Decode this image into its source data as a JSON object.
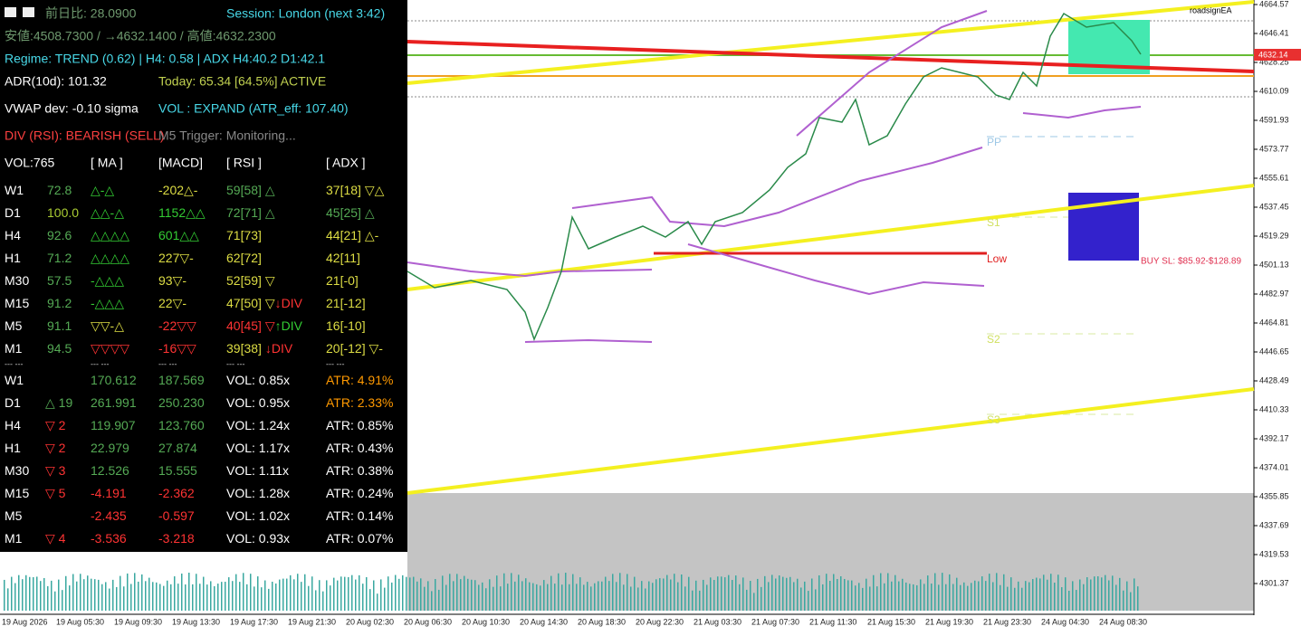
{
  "header": {
    "prev_day": "前日比: 28.0900",
    "session": "Session: London (next 3:42)",
    "range": "安値:4508.7300 / →4632.1400 / 高値:4632.2300",
    "regime": "Regime: TREND (0.62) | H4: 0.58 | ADX H4:40.2 D1:42.1",
    "adr": "ADR(10d): 101.32",
    "today": "Today: 65.34 [64.5%] ACTIVE",
    "vwap": "VWAP dev: -0.10 sigma",
    "vol": "VOL : EXPAND (ATR_eff: 107.40)",
    "div": "DIV (RSI): BEARISH (SELL)",
    "trigger": "M5 Trigger: Monitoring..."
  },
  "table1": {
    "columns": [
      "VOL:765",
      "[ MA ]",
      "[MACD]",
      "[ RSI ]",
      "[ ADX ]"
    ],
    "rows": [
      [
        [
          [
            "W1",
            "#ffffff"
          ]
        ],
        [
          [
            "72.8",
            "#55aa55"
          ]
        ],
        [
          [
            "△-△",
            "#33cc33"
          ]
        ],
        [
          [
            "-202△-",
            "#dddd44"
          ]
        ],
        [
          [
            "59[58] △",
            "#55aa55"
          ]
        ],
        [
          [
            "37[18] ▽△",
            "#dddd44"
          ]
        ]
      ],
      [
        [
          [
            "D1",
            "#ffffff"
          ]
        ],
        [
          [
            "100.0",
            "#aacc33"
          ]
        ],
        [
          [
            "△△-△",
            "#33cc33"
          ]
        ],
        [
          [
            "1152△△",
            "#33cc33"
          ]
        ],
        [
          [
            "72[71] △",
            "#55aa55"
          ]
        ],
        [
          [
            "45[25] △",
            "#55aa55"
          ]
        ]
      ],
      [
        [
          [
            "H4",
            "#ffffff"
          ]
        ],
        [
          [
            "92.6",
            "#55aa55"
          ]
        ],
        [
          [
            "△△△△",
            "#33cc33"
          ]
        ],
        [
          [
            "601△△",
            "#33cc33"
          ]
        ],
        [
          [
            "71[73]",
            "#dddd44"
          ]
        ],
        [
          [
            "44[21] △-",
            "#dddd44"
          ]
        ]
      ],
      [
        [
          [
            "H1",
            "#ffffff"
          ]
        ],
        [
          [
            "71.2",
            "#55aa55"
          ]
        ],
        [
          [
            "△△△△",
            "#33cc33"
          ]
        ],
        [
          [
            "227▽-",
            "#dddd44"
          ]
        ],
        [
          [
            "62[72]",
            "#dddd44"
          ]
        ],
        [
          [
            "42[11]",
            "#dddd44"
          ]
        ]
      ],
      [
        [
          [
            "M30",
            "#ffffff"
          ]
        ],
        [
          [
            "57.5",
            "#55aa55"
          ]
        ],
        [
          [
            "-△△△",
            "#33cc33"
          ]
        ],
        [
          [
            "93▽-",
            "#dddd44"
          ]
        ],
        [
          [
            "52[59] ▽",
            "#dddd44"
          ]
        ],
        [
          [
            "21[-0]",
            "#dddd44"
          ]
        ]
      ],
      [
        [
          [
            "M15",
            "#ffffff"
          ]
        ],
        [
          [
            "91.2",
            "#55aa55"
          ]
        ],
        [
          [
            "-△△△",
            "#33cc33"
          ]
        ],
        [
          [
            "22▽-",
            "#dddd44"
          ]
        ],
        [
          [
            "47[50] ▽",
            "#dddd44"
          ],
          [
            "↓DIV",
            "#ff3333"
          ]
        ],
        [
          [
            "21[-12]",
            "#dddd44"
          ]
        ]
      ],
      [
        [
          [
            "M5",
            "#ffffff"
          ]
        ],
        [
          [
            "91.1",
            "#55aa55"
          ]
        ],
        [
          [
            "▽▽-△",
            "#dddd44"
          ]
        ],
        [
          [
            "-22▽▽",
            "#ff3333"
          ]
        ],
        [
          [
            "40[45] ▽",
            "#ff3333"
          ],
          [
            "↑DIV",
            "#33cc33"
          ]
        ],
        [
          [
            "16[-10]",
            "#dddd44"
          ]
        ]
      ],
      [
        [
          [
            "M1",
            "#ffffff"
          ]
        ],
        [
          [
            "94.5",
            "#55aa55"
          ]
        ],
        [
          [
            "▽▽▽▽",
            "#ff3333"
          ]
        ],
        [
          [
            "-16▽▽",
            "#ff3333"
          ]
        ],
        [
          [
            "39[38]  ",
            "#dddd44"
          ],
          [
            "↓DIV",
            "#ff3333"
          ]
        ],
        [
          [
            "20[-12] ▽-",
            "#dddd44"
          ]
        ]
      ]
    ]
  },
  "separator": "--- ---",
  "table2": {
    "rows": [
      [
        [
          [
            "W1",
            "#ffffff"
          ]
        ],
        null,
        [
          [
            "170.612",
            "#55aa55"
          ]
        ],
        [
          [
            "187.569",
            "#55aa55"
          ]
        ],
        [
          [
            "VOL: 0.85x",
            "#ffffff"
          ]
        ],
        [
          [
            "ATR: 4.91%",
            "#ff9900"
          ]
        ]
      ],
      [
        [
          [
            "D1",
            "#ffffff"
          ]
        ],
        [
          [
            "△ 19",
            "#55aa55"
          ]
        ],
        [
          [
            "261.991",
            "#55aa55"
          ]
        ],
        [
          [
            "250.230",
            "#55aa55"
          ]
        ],
        [
          [
            "VOL: 0.95x",
            "#ffffff"
          ]
        ],
        [
          [
            "ATR: 2.33%",
            "#ff9900"
          ]
        ]
      ],
      [
        [
          [
            "H4",
            "#ffffff"
          ]
        ],
        [
          [
            "▽ 2",
            "#ff3333"
          ]
        ],
        [
          [
            "119.907",
            "#55aa55"
          ]
        ],
        [
          [
            "123.760",
            "#55aa55"
          ]
        ],
        [
          [
            "VOL: 1.24x",
            "#ffffff"
          ]
        ],
        [
          [
            "ATR: 0.85%",
            "#ffffff"
          ]
        ]
      ],
      [
        [
          [
            "H1",
            "#ffffff"
          ]
        ],
        [
          [
            "▽ 2",
            "#ff3333"
          ]
        ],
        [
          [
            "22.979",
            "#55aa55"
          ]
        ],
        [
          [
            "27.874",
            "#55aa55"
          ]
        ],
        [
          [
            "VOL: 1.17x",
            "#ffffff"
          ]
        ],
        [
          [
            "ATR: 0.43%",
            "#ffffff"
          ]
        ]
      ],
      [
        [
          [
            "M30",
            "#ffffff"
          ]
        ],
        [
          [
            "▽ 3",
            "#ff3333"
          ]
        ],
        [
          [
            "12.526",
            "#55aa55"
          ]
        ],
        [
          [
            "15.555",
            "#55aa55"
          ]
        ],
        [
          [
            "VOL: 1.11x",
            "#ffffff"
          ]
        ],
        [
          [
            "ATR: 0.38%",
            "#ffffff"
          ]
        ]
      ],
      [
        [
          [
            "M15",
            "#ffffff"
          ]
        ],
        [
          [
            "▽ 5",
            "#ff3333"
          ]
        ],
        [
          [
            "-4.191",
            "#ff3333"
          ]
        ],
        [
          [
            "-2.362",
            "#ff3333"
          ]
        ],
        [
          [
            "VOL: 1.28x",
            "#ffffff"
          ]
        ],
        [
          [
            "ATR: 0.24%",
            "#ffffff"
          ]
        ]
      ],
      [
        [
          [
            "M5",
            "#ffffff"
          ]
        ],
        null,
        [
          [
            "-2.435",
            "#ff3333"
          ]
        ],
        [
          [
            "-0.597",
            "#ff3333"
          ]
        ],
        [
          [
            "VOL: 1.02x",
            "#ffffff"
          ]
        ],
        [
          [
            "ATR: 0.14%",
            "#ffffff"
          ]
        ]
      ],
      [
        [
          [
            "M1",
            "#ffffff"
          ]
        ],
        [
          [
            "▽ 4",
            "#ff3333"
          ]
        ],
        [
          [
            "-3.536",
            "#ff3333"
          ]
        ],
        [
          [
            "-3.218",
            "#ff3333"
          ]
        ],
        [
          [
            "VOL: 0.93x",
            "#ffffff"
          ]
        ],
        [
          [
            "ATR: 0.07%",
            "#ffffff"
          ]
        ]
      ]
    ]
  },
  "chart": {
    "ea_name": "roadsignEA",
    "current_price": "4632.14",
    "pp": "PP",
    "s1": "S1",
    "s2": "S2",
    "s3": "S3",
    "low": "Low",
    "buy_sl": "BUY SL: $85.92-$128.89",
    "price_axis": [
      "4664.57",
      "4646.41",
      "4628.25",
      "4610.09",
      "4591.93",
      "4573.77",
      "4555.61",
      "4537.45",
      "4519.29",
      "4501.13",
      "4482.97",
      "4464.81",
      "4446.65",
      "4428.49",
      "4410.33",
      "4392.17",
      "4374.01",
      "4355.85",
      "4337.69",
      "4319.53",
      "4301.37"
    ],
    "time_axis": [
      "19 Aug 2026",
      "19 Aug 05:30",
      "19 Aug 09:30",
      "19 Aug 13:30",
      "19 Aug 17:30",
      "19 Aug 21:30",
      "20 Aug 02:30",
      "20 Aug 06:30",
      "20 Aug 10:30",
      "20 Aug 14:30",
      "20 Aug 18:30",
      "20 Aug 22:30",
      "21 Aug 03:30",
      "21 Aug 07:30",
      "21 Aug 11:30",
      "21 Aug 15:30",
      "21 Aug 19:30",
      "21 Aug 23:30",
      "24 Aug 04:30",
      "24 Aug 08:30"
    ]
  }
}
